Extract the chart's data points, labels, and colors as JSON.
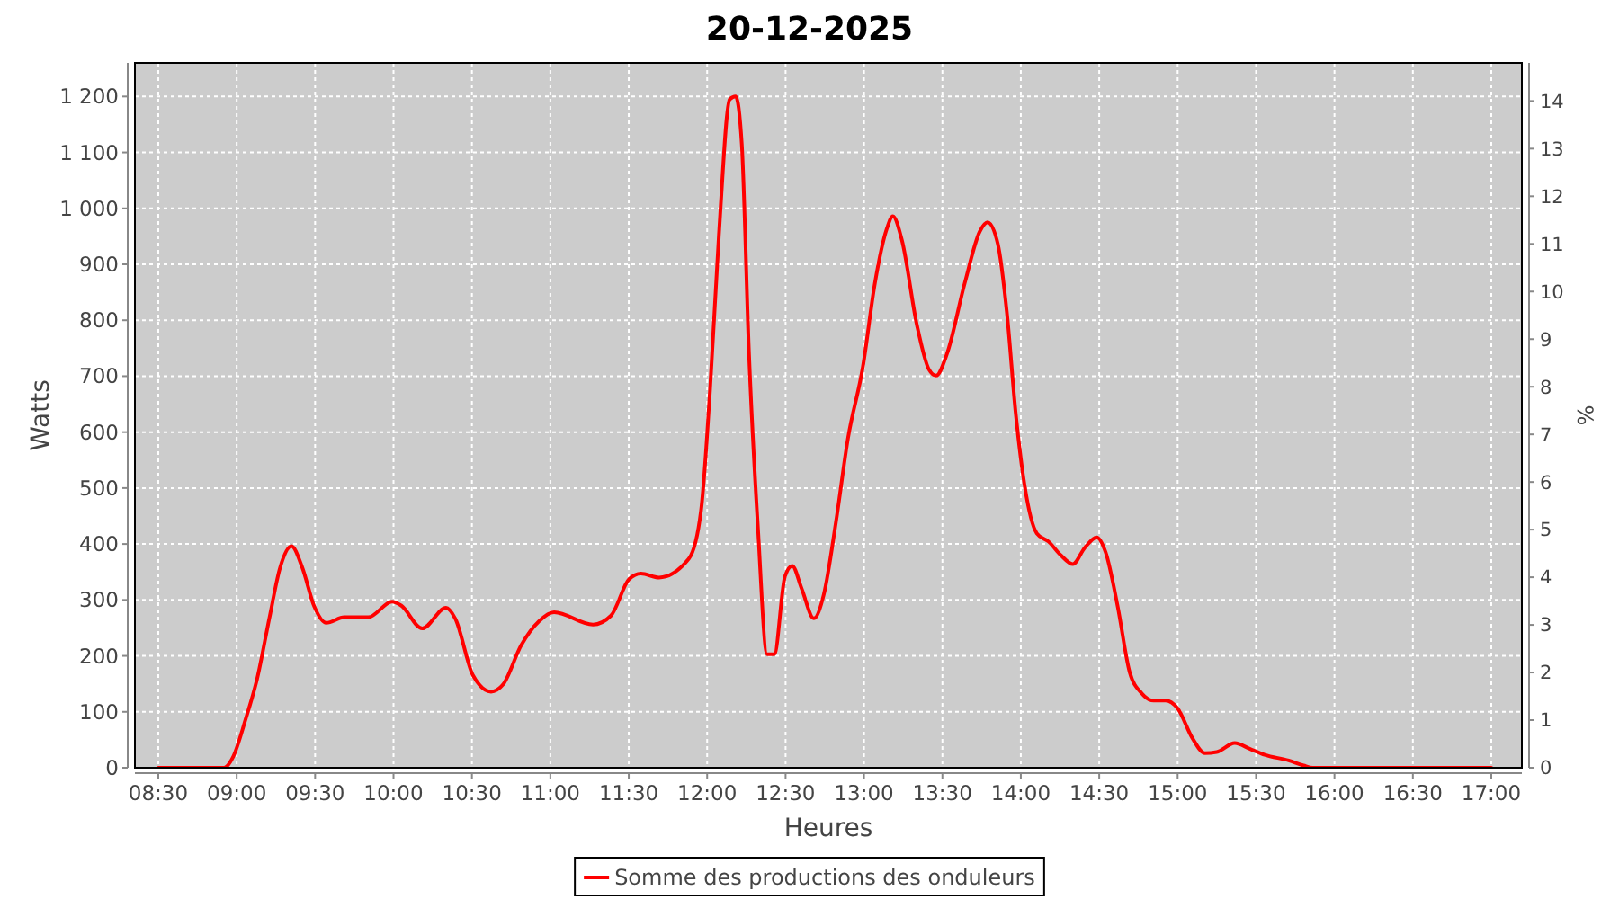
{
  "chart_data": {
    "type": "line",
    "title": "20-12-2025",
    "xlabel": "Heures",
    "ylabel": "Watts",
    "y2label": "%",
    "x": [
      8.5,
      8.92,
      8.978,
      9.055,
      9.131,
      9.208,
      9.277,
      9.349,
      9.418,
      9.495,
      9.571,
      9.686,
      9.839,
      9.991,
      10.049,
      10.183,
      10.335,
      10.393,
      10.507,
      10.622,
      10.699,
      10.814,
      10.928,
      11.024,
      11.272,
      11.387,
      11.502,
      11.578,
      11.693,
      11.884,
      11.961,
      12.018,
      12.075,
      12.144,
      12.182,
      12.221,
      12.267,
      12.324,
      12.382,
      12.428,
      12.496,
      12.542,
      12.603,
      12.68,
      12.744,
      12.821,
      12.898,
      12.993,
      13.07,
      13.146,
      13.184,
      13.242,
      13.337,
      13.414,
      13.46,
      13.528,
      13.643,
      13.739,
      13.788,
      13.853,
      13.911,
      13.968,
      14.025,
      14.102,
      14.178,
      14.255,
      14.332,
      14.407,
      14.484,
      14.541,
      14.618,
      14.694,
      14.771,
      14.848,
      14.923,
      15.0,
      15.096,
      15.173,
      15.249,
      15.364,
      15.459,
      15.555,
      15.708,
      15.803,
      15.861,
      17.0
    ],
    "series": [
      {
        "name": "Somme des productions des onduleurs",
        "color": "#ff0000",
        "values": [
          0,
          0,
          20,
          85,
          160,
          267,
          358,
          396,
          358,
          288,
          259,
          269,
          269,
          297,
          290,
          249,
          286,
          267,
          165,
          136,
          149,
          219,
          262,
          278,
          256,
          272,
          337,
          347,
          340,
          374,
          460,
          674,
          953,
          1195,
          1200,
          1114,
          739,
          428,
          203,
          203,
          342,
          361,
          320,
          267,
          310,
          439,
          589,
          717,
          867,
          964,
          986,
          943,
          792,
          712,
          701,
          739,
          867,
          959,
          975,
          937,
          814,
          632,
          503,
          419,
          404,
          380,
          364,
          393,
          412,
          385,
          288,
          171,
          133,
          120,
          120,
          106,
          52,
          26,
          28,
          44,
          34,
          23,
          13,
          4,
          0,
          0
        ]
      }
    ],
    "xlim": [
      8.351,
      17.195
    ],
    "xticks": [
      {
        "value": 8.5,
        "label": "08:30"
      },
      {
        "value": 9,
        "label": "09:00"
      },
      {
        "value": 9.5,
        "label": "09:30"
      },
      {
        "value": 10,
        "label": "10:00"
      },
      {
        "value": 10.5,
        "label": "10:30"
      },
      {
        "value": 11,
        "label": "11:00"
      },
      {
        "value": 11.5,
        "label": "11:30"
      },
      {
        "value": 12,
        "label": "12:00"
      },
      {
        "value": 12.5,
        "label": "12:30"
      },
      {
        "value": 13,
        "label": "13:00"
      },
      {
        "value": 13.5,
        "label": "13:30"
      },
      {
        "value": 14,
        "label": "14:00"
      },
      {
        "value": 14.5,
        "label": "14:30"
      },
      {
        "value": 15,
        "label": "15:00"
      },
      {
        "value": 15.5,
        "label": "15:30"
      },
      {
        "value": 16,
        "label": "16:00"
      },
      {
        "value": 16.5,
        "label": "16:30"
      },
      {
        "value": 17,
        "label": "17:00"
      }
    ],
    "ylim": [
      0,
      1260
    ],
    "yticks": [
      0,
      100,
      200,
      300,
      400,
      500,
      600,
      700,
      800,
      900,
      {
        "value": 1000,
        "label": "1 000"
      },
      {
        "value": 1100,
        "label": "1 100"
      },
      {
        "value": 1200,
        "label": "1 200"
      }
    ],
    "y2lim": [
      0,
      14.8
    ],
    "y2ticks": [
      0,
      1,
      2,
      3,
      4,
      5,
      6,
      7,
      8,
      9,
      10,
      11,
      12,
      13,
      14
    ],
    "grid": true,
    "legend": "bottom",
    "line_style": "solid"
  }
}
